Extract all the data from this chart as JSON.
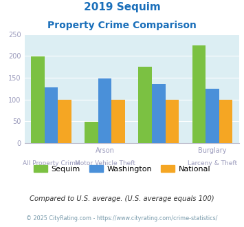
{
  "title_line1": "2019 Sequim",
  "title_line2": "Property Crime Comparison",
  "title_color": "#1a6fba",
  "label_top": [
    "",
    "Arson",
    "",
    "Burglary"
  ],
  "label_bottom": [
    "All Property Crime",
    "Motor Vehicle Theft",
    "",
    "Larceny & Theft"
  ],
  "sequim_values": [
    198,
    49,
    175,
    224
  ],
  "washington_values": [
    127,
    148,
    135,
    124
  ],
  "national_values": [
    100,
    100,
    100,
    100
  ],
  "sequim_color": "#7bc142",
  "washington_color": "#4a90d9",
  "national_color": "#f5a623",
  "bar_width": 0.25,
  "ylim": [
    0,
    250
  ],
  "yticks": [
    0,
    50,
    100,
    150,
    200,
    250
  ],
  "chart_bg": "#dceef3",
  "legend_labels": [
    "Sequim",
    "Washington",
    "National"
  ],
  "footnote1": "Compared to U.S. average. (U.S. average equals 100)",
  "footnote2": "© 2025 CityRating.com - https://www.cityrating.com/crime-statistics/",
  "footnote1_color": "#333333",
  "footnote2_color": "#7799aa",
  "tick_color": "#9999bb",
  "grid_color": "#ffffff"
}
